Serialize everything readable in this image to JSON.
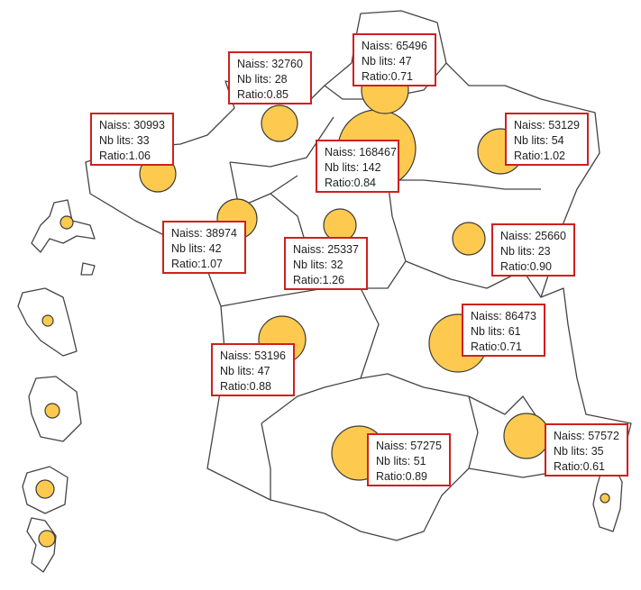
{
  "colors": {
    "bubble": "#fdca4f",
    "bubble_stroke": "#3a3a3a",
    "box_border": "#d01f1f",
    "border": "#444444"
  },
  "labels": {
    "naiss": "Naiss: ",
    "lits": "Nb lits: ",
    "ratio": "Ratio:"
  },
  "regions": [
    {
      "naiss": "30993",
      "lits": "33",
      "ratio": "1.06"
    },
    {
      "naiss": "32760",
      "lits": "28",
      "ratio": "0.85"
    },
    {
      "naiss": "65496",
      "lits": "47",
      "ratio": "0.71"
    },
    {
      "naiss": "168467",
      "lits": "142",
      "ratio": "0.84"
    },
    {
      "naiss": "53129",
      "lits": "54",
      "ratio": "1.02"
    },
    {
      "naiss": "38974",
      "lits": "42",
      "ratio": "1.07"
    },
    {
      "naiss": "25337",
      "lits": "32",
      "ratio": "1.26"
    },
    {
      "naiss": "25660",
      "lits": "23",
      "ratio": "0.90"
    },
    {
      "naiss": "86473",
      "lits": "61",
      "ratio": "0.71"
    },
    {
      "naiss": "53196",
      "lits": "47",
      "ratio": "0.88"
    },
    {
      "naiss": "57275",
      "lits": "51",
      "ratio": "0.89"
    },
    {
      "naiss": "57572",
      "lits": "35",
      "ratio": "0.61"
    }
  ]
}
